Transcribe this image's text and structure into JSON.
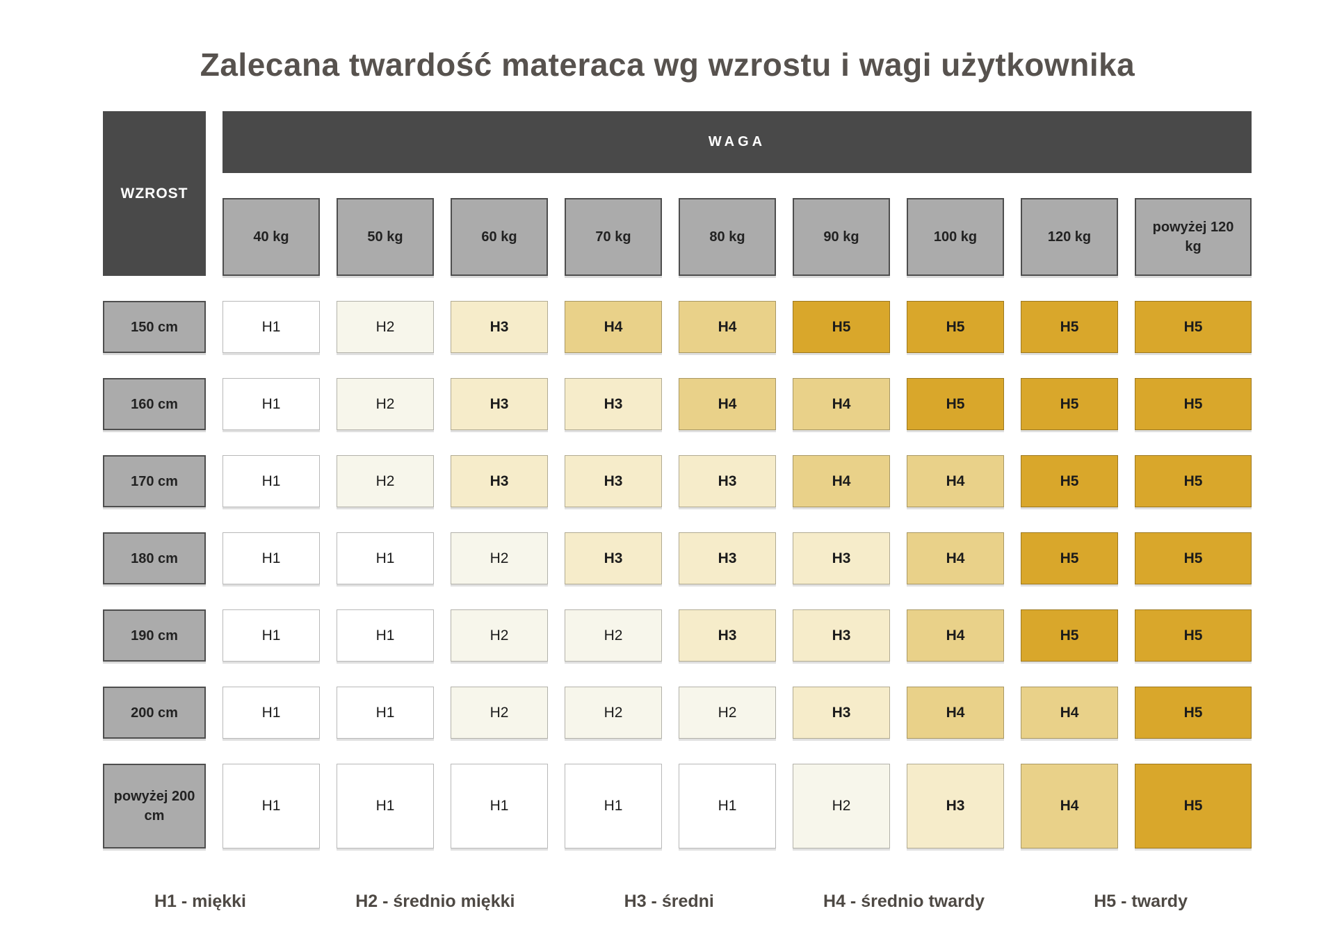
{
  "chart_data": {
    "type": "heatmap",
    "title": "Zalecana twardość materaca wg wzrostu i wagi użytkownika",
    "x_axis_label": "WAGA",
    "y_axis_label": "WZROST",
    "x_categories": [
      "40 kg",
      "50 kg",
      "60 kg",
      "70 kg",
      "80 kg",
      "90 kg",
      "100 kg",
      "120 kg",
      "powyżej 120 kg"
    ],
    "y_categories": [
      "150 cm",
      "160 cm",
      "170 cm",
      "180 cm",
      "190 cm",
      "200 cm",
      "powyżej 200 cm"
    ],
    "values": [
      [
        "H1",
        "H2",
        "H3",
        "H4",
        "H4",
        "H5",
        "H5",
        "H5",
        "H5"
      ],
      [
        "H1",
        "H2",
        "H3",
        "H3",
        "H4",
        "H4",
        "H5",
        "H5",
        "H5"
      ],
      [
        "H1",
        "H2",
        "H3",
        "H3",
        "H3",
        "H4",
        "H4",
        "H5",
        "H5"
      ],
      [
        "H1",
        "H1",
        "H2",
        "H3",
        "H3",
        "H3",
        "H4",
        "H5",
        "H5"
      ],
      [
        "H1",
        "H1",
        "H2",
        "H2",
        "H3",
        "H3",
        "H4",
        "H5",
        "H5"
      ],
      [
        "H1",
        "H1",
        "H2",
        "H2",
        "H2",
        "H3",
        "H4",
        "H4",
        "H5"
      ],
      [
        "H1",
        "H1",
        "H1",
        "H1",
        "H1",
        "H2",
        "H3",
        "H4",
        "H5"
      ]
    ],
    "legend": [
      "H1 - miękki",
      "H2 - średnio miękki",
      "H3 - średni",
      "H4 - średnio twardy",
      "H5 - twardy"
    ],
    "colors": {
      "H1": "#ffffff",
      "H2": "#f7f6eb",
      "H3": "#f6ecca",
      "H4": "#e9d189",
      "H5": "#d9a72b",
      "header_dark": "#494949",
      "header_gray": "#ababab",
      "title_text": "#57524e"
    }
  }
}
